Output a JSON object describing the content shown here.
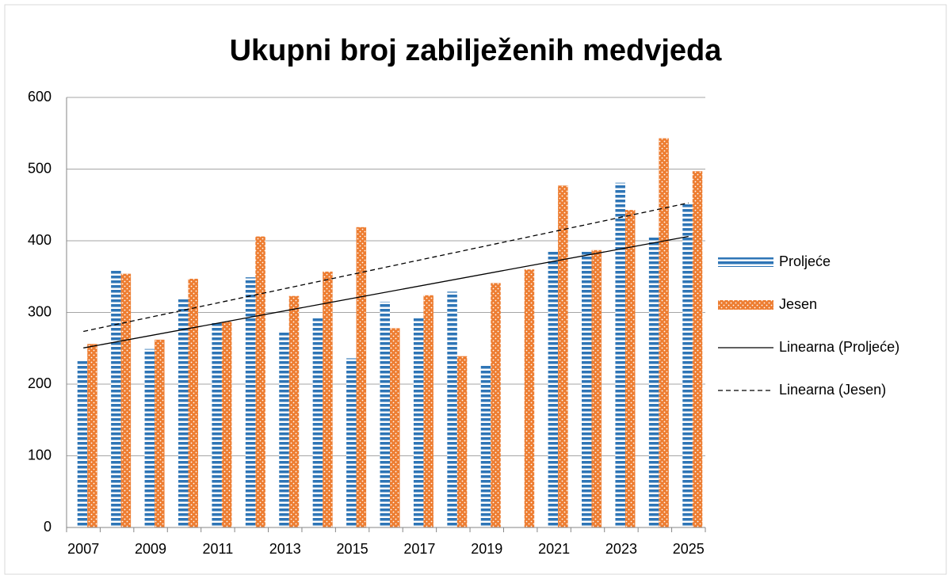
{
  "chart_data": {
    "type": "bar",
    "title": "Ukupni broj zabilježenih medvjeda",
    "categories": [
      2007,
      null,
      2009,
      null,
      2011,
      null,
      2013,
      null,
      2015,
      null,
      2017,
      null,
      2019,
      null,
      2021,
      null,
      2023,
      null,
      2025
    ],
    "series": [
      {
        "name": "Proljeće",
        "color": "#2e75b6",
        "values": [
          232,
          359,
          249,
          319,
          287,
          349,
          274,
          294,
          236,
          315,
          292,
          329,
          227,
          null,
          386,
          386,
          481,
          406,
          453
        ]
      },
      {
        "name": "Jesen",
        "color": "#ed7d31",
        "values": [
          256,
          354,
          262,
          347,
          287,
          406,
          323,
          357,
          419,
          278,
          324,
          239,
          341,
          360,
          477,
          387,
          443,
          543,
          497
        ]
      }
    ],
    "trendlines": [
      {
        "name": "Linearna (Proljeće)",
        "series": 0,
        "style": "solid"
      },
      {
        "name": "Linearna (Jesen)",
        "series": 1,
        "style": "dashed"
      }
    ],
    "ylim": [
      0,
      600
    ],
    "yticks": [
      0,
      100,
      200,
      300,
      400,
      500,
      600
    ],
    "grid": true,
    "legend": "right"
  }
}
